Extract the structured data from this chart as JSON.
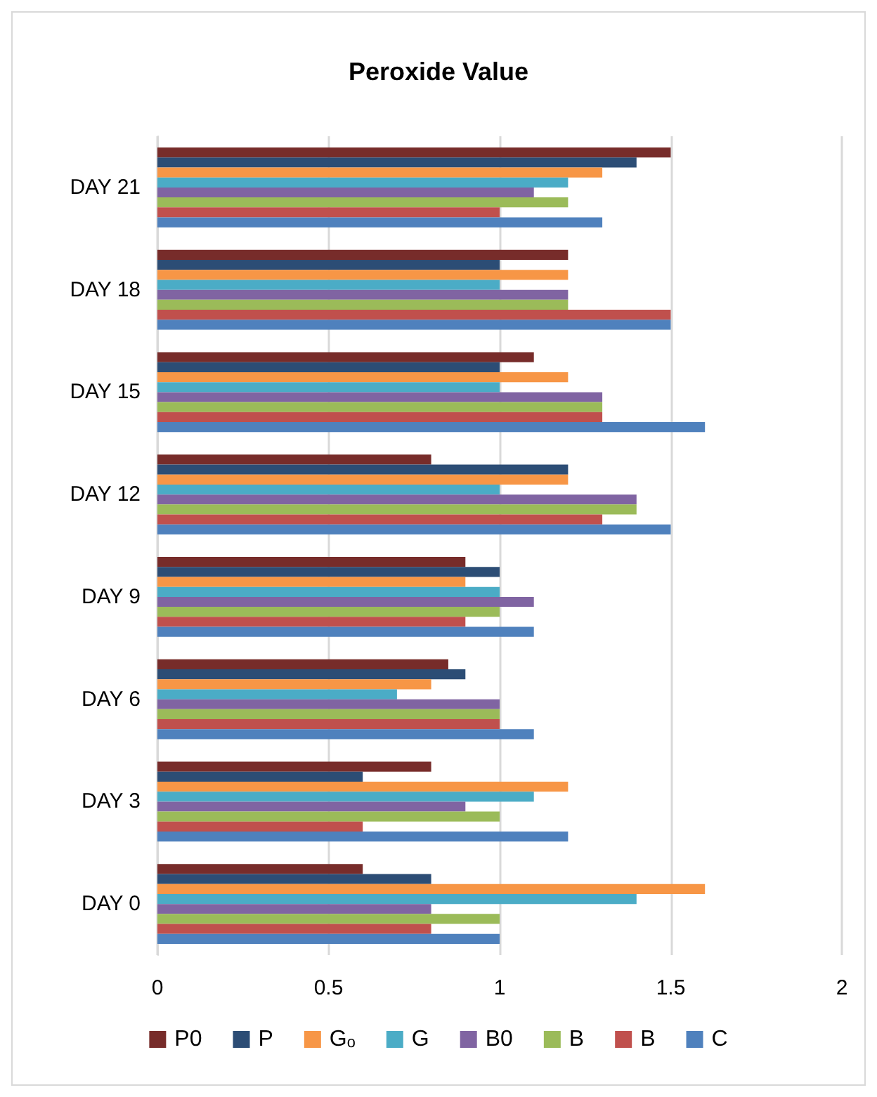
{
  "chart_data": {
    "type": "bar",
    "orientation": "horizontal",
    "title": "Peroxide Value",
    "categories": [
      "DAY 21",
      "DAY 18",
      "DAY 15",
      "DAY 12",
      "DAY 9",
      "DAY 6",
      "DAY 3",
      "DAY 0"
    ],
    "series": [
      {
        "name": "P0",
        "color": "#772c2a",
        "values": [
          1.5,
          1.2,
          1.1,
          0.8,
          0.9,
          0.85,
          0.8,
          0.6
        ]
      },
      {
        "name": "P",
        "color": "#2c4d75",
        "values": [
          1.4,
          1.0,
          1.0,
          1.2,
          1.0,
          0.9,
          0.6,
          0.8
        ]
      },
      {
        "name": "Gₒ",
        "color": "#f79646",
        "values": [
          1.3,
          1.2,
          1.2,
          1.2,
          0.9,
          0.8,
          1.2,
          1.6
        ]
      },
      {
        "name": "G",
        "color": "#4bacc6",
        "values": [
          1.2,
          1.0,
          1.0,
          1.0,
          1.0,
          0.7,
          1.1,
          1.4
        ]
      },
      {
        "name": "B0",
        "color": "#8064a2",
        "values": [
          1.1,
          1.2,
          1.3,
          1.4,
          1.1,
          1.0,
          0.9,
          0.8
        ]
      },
      {
        "name": "B",
        "color": "#9bbb59",
        "values": [
          1.2,
          1.2,
          1.3,
          1.4,
          1.0,
          1.0,
          1.0,
          1.0
        ]
      },
      {
        "name": "B",
        "color": "#c0504d",
        "values": [
          1.0,
          1.5,
          1.3,
          1.3,
          0.9,
          1.0,
          0.6,
          0.8
        ]
      },
      {
        "name": "C",
        "color": "#4f81bd",
        "values": [
          1.3,
          1.5,
          1.6,
          1.5,
          1.1,
          1.1,
          1.2,
          1.0
        ]
      }
    ],
    "xlim": [
      0,
      2
    ],
    "xticks": [
      0,
      0.5,
      1,
      1.5,
      2
    ],
    "grid": "x",
    "legend": "bottom"
  }
}
